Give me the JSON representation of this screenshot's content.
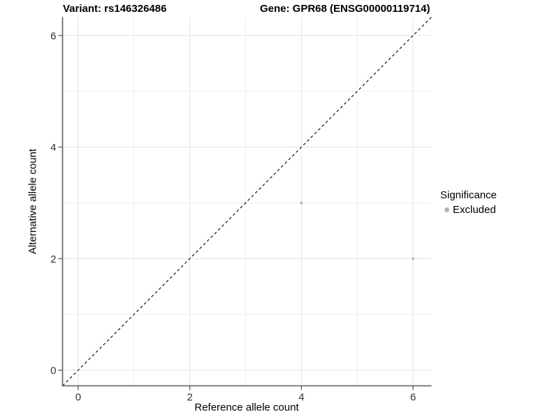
{
  "header": {
    "title_left": "Variant: rs146326486",
    "title_right": "Gene: GPR68 (ENSG00000119714)"
  },
  "chart_data": {
    "type": "scatter",
    "xlabel": "Reference allele count",
    "ylabel": "Alternative allele count",
    "xlim": [
      -0.28,
      6.33
    ],
    "ylim": [
      -0.28,
      6.33
    ],
    "x_ticks": [
      0,
      2,
      4,
      6
    ],
    "y_ticks": [
      0,
      2,
      4,
      6
    ],
    "x_minor_ticks": [
      1,
      3,
      5
    ],
    "y_minor_ticks": [
      1,
      3,
      5
    ],
    "grid": "major+minor",
    "reference_line": {
      "type": "identity-diagonal",
      "style": "dashed",
      "color": "#000000"
    },
    "series": [
      {
        "name": "Excluded",
        "color": "#bdbdbd",
        "points": [
          {
            "x": 4,
            "y": 3
          },
          {
            "x": 6,
            "y": 2
          }
        ]
      }
    ],
    "legend": {
      "title": "Significance",
      "position": "right",
      "items": [
        {
          "label": "Excluded",
          "color": "#b3b3b3"
        }
      ]
    },
    "colors": {
      "grid_major": "#e3e3e3",
      "grid_minor": "#efefef",
      "axis_line": "#6f6f6f",
      "tick_mark": "#6f6f6f",
      "tick_label": "#333333",
      "background": "#ffffff"
    }
  }
}
